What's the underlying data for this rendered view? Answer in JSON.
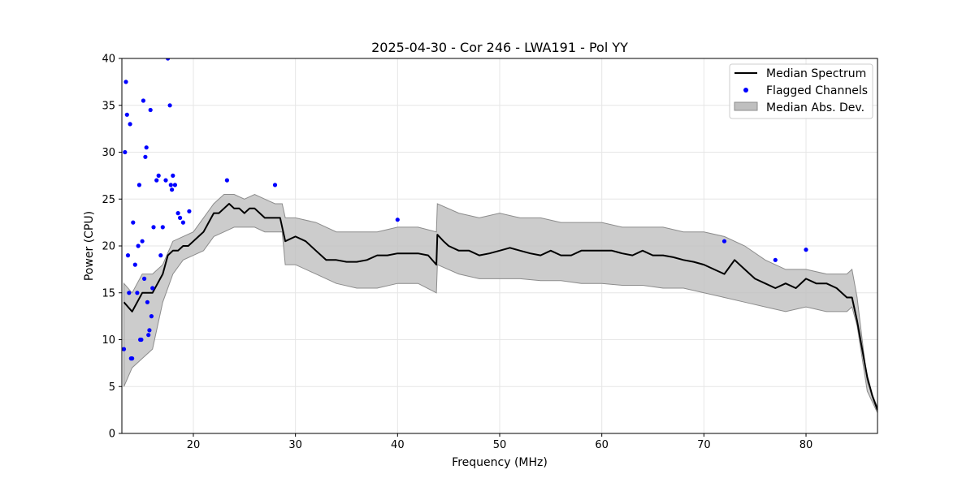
{
  "chart_data": {
    "type": "line",
    "title": "2025-04-30 - Cor 246 - LWA191 - Pol YY",
    "xlabel": "Frequency (MHz)",
    "ylabel": "Power (CPU)",
    "xlim": [
      13,
      87
    ],
    "ylim": [
      0,
      40
    ],
    "xticks": [
      20,
      30,
      40,
      50,
      60,
      70,
      80
    ],
    "yticks": [
      0,
      5,
      10,
      15,
      20,
      25,
      30,
      35,
      40
    ],
    "grid": true,
    "legend": {
      "placement": "top-right",
      "entries": [
        "Median Spectrum",
        "Flagged Channels",
        "Median Abs. Dev."
      ]
    },
    "colors": {
      "line": "#000000",
      "flagged": "#0000ff",
      "band_fill": "#bfbfbf",
      "band_edge": "#8c8c8c"
    },
    "series": [
      {
        "name": "Median Spectrum",
        "x": [
          13.2,
          14,
          15,
          16,
          16.5,
          17,
          17.5,
          18,
          18.5,
          19,
          19.5,
          20,
          20.5,
          21,
          21.5,
          22,
          22.5,
          23,
          23.5,
          24,
          24.5,
          25,
          25.5,
          26,
          26.5,
          27,
          27.5,
          28,
          28.5,
          28.7,
          29,
          30,
          31,
          32,
          33,
          34,
          35,
          36,
          37,
          38,
          39,
          40,
          41,
          42,
          43,
          43.8,
          43.9,
          44.5,
          45,
          46,
          47,
          48,
          49,
          50,
          51,
          52,
          53,
          54,
          55,
          56,
          57,
          58,
          59,
          60,
          61,
          62,
          63,
          64,
          65,
          66,
          67,
          68,
          69,
          70,
          71,
          72,
          73,
          74,
          75,
          76,
          77,
          78,
          79,
          80,
          81,
          82,
          83,
          84,
          84.5,
          85,
          85.5,
          86,
          86.5,
          87
        ],
        "y": [
          14,
          13,
          15,
          15,
          16,
          17,
          19,
          19.5,
          19.5,
          20,
          20,
          20.5,
          21,
          21.5,
          22.5,
          23.5,
          23.5,
          24,
          24.5,
          24,
          24,
          23.5,
          24,
          24,
          23.5,
          23,
          23,
          23,
          23,
          22,
          20.5,
          21,
          20.5,
          19.5,
          18.5,
          18.5,
          18.3,
          18.3,
          18.5,
          19,
          19,
          19.2,
          19.2,
          19.2,
          19,
          18,
          21.2,
          20.5,
          20,
          19.5,
          19.5,
          19,
          19.2,
          19.5,
          19.8,
          19.5,
          19.2,
          19,
          19.5,
          19,
          19,
          19.5,
          19.5,
          19.5,
          19.5,
          19.2,
          19,
          19.5,
          19,
          19,
          18.8,
          18.5,
          18.3,
          18,
          17.5,
          17,
          18.5,
          17.5,
          16.5,
          16,
          15.5,
          16,
          15.5,
          16.5,
          16,
          16,
          15.5,
          14.5,
          14.5,
          12,
          9,
          6,
          4,
          2.5
        ]
      },
      {
        "name": "Median Abs. Dev.",
        "x": [
          13.2,
          14,
          15,
          16,
          17,
          18,
          19,
          20,
          21,
          22,
          23,
          24,
          25,
          26,
          27,
          28,
          28.7,
          29,
          30,
          32,
          34,
          36,
          38,
          40,
          42,
          43.8,
          43.9,
          46,
          48,
          50,
          52,
          54,
          56,
          58,
          60,
          62,
          64,
          66,
          68,
          70,
          72,
          74,
          76,
          78,
          80,
          82,
          84,
          84.5,
          85,
          86,
          87
        ],
        "upper": [
          16,
          15,
          17,
          17,
          18,
          20.5,
          21,
          21.5,
          23,
          24.5,
          25.5,
          25.5,
          25,
          25.5,
          25,
          24.5,
          24.5,
          23,
          23,
          22.5,
          21.5,
          21.5,
          21.5,
          22,
          22,
          21.5,
          24.5,
          23.5,
          23,
          23.5,
          23,
          23,
          22.5,
          22.5,
          22.5,
          22,
          22,
          22,
          21.5,
          21.5,
          21,
          20,
          18.5,
          17.5,
          17.5,
          17,
          17,
          17.5,
          14.5,
          5.5,
          2.8
        ],
        "lower": [
          5,
          7,
          8,
          9,
          14,
          17,
          18.5,
          19,
          19.5,
          21,
          21.5,
          22,
          22,
          22,
          21.5,
          21.5,
          21.5,
          18,
          18,
          17,
          16,
          15.5,
          15.5,
          16,
          16,
          15,
          18,
          17,
          16.5,
          16.5,
          16.5,
          16.3,
          16.3,
          16,
          16,
          15.8,
          15.8,
          15.5,
          15.5,
          15,
          14.5,
          14,
          13.5,
          13,
          13.5,
          13,
          13,
          13.5,
          11.5,
          4.5,
          2.2
        ]
      },
      {
        "name": "Flagged Channels",
        "x": [
          13.2,
          13.3,
          13.4,
          13.5,
          13.6,
          13.7,
          13.8,
          13.9,
          14,
          14.1,
          14.3,
          14.5,
          14.6,
          14.7,
          14.8,
          14.9,
          15,
          15.1,
          15.2,
          15.3,
          15.4,
          15.5,
          15.6,
          15.7,
          15.8,
          15.9,
          16,
          16.1,
          16.4,
          16.6,
          16.8,
          17,
          17.3,
          17.5,
          17.7,
          17.8,
          17.9,
          18,
          18.2,
          18.5,
          18.7,
          19,
          19.6,
          23.3,
          28,
          40,
          72,
          77,
          80
        ],
        "y": [
          9,
          30,
          37.5,
          34,
          19,
          15,
          33,
          8,
          8,
          22.5,
          18,
          15,
          20,
          26.5,
          10,
          10,
          20.5,
          35.5,
          16.5,
          29.5,
          30.5,
          14,
          10.5,
          11,
          34.5,
          12.5,
          15.5,
          22,
          27,
          27.5,
          19,
          22,
          27,
          40,
          35,
          26.5,
          26,
          27.5,
          26.5,
          23.5,
          23,
          22.5,
          23.7,
          27,
          26.5,
          22.8,
          20.5,
          18.5,
          19.6
        ]
      }
    ]
  }
}
